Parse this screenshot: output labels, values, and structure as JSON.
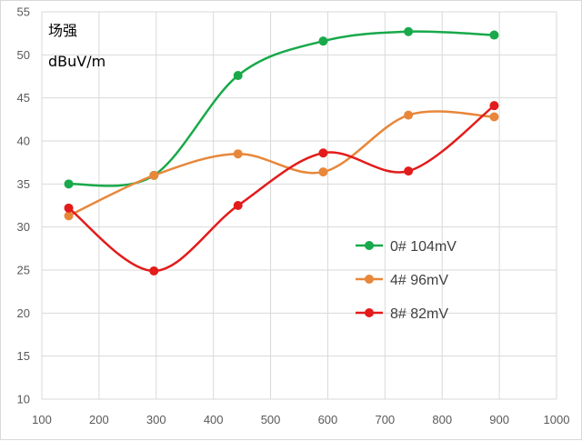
{
  "chart_data": {
    "type": "line",
    "title": "",
    "ylabel_line1": "场强",
    "ylabel_line2": "dBuV/m",
    "xlabel": "",
    "xlim": [
      100,
      1000
    ],
    "ylim": [
      10,
      55
    ],
    "x_ticks": [
      100,
      200,
      300,
      400,
      500,
      600,
      700,
      800,
      900,
      1000
    ],
    "y_ticks": [
      10,
      15,
      20,
      25,
      30,
      35,
      40,
      45,
      50,
      55
    ],
    "grid": true,
    "legend_position": "right-middle",
    "series": [
      {
        "name": "0# 104mV",
        "color": "#18a94a",
        "x": [
          147,
          296,
          443,
          592,
          741,
          891
        ],
        "y": [
          35.0,
          36.0,
          47.6,
          51.6,
          52.7,
          52.3
        ]
      },
      {
        "name": "4# 96mV",
        "color": "#e8873a",
        "x": [
          147,
          296,
          443,
          592,
          741,
          891
        ],
        "y": [
          31.3,
          36.0,
          38.5,
          36.4,
          43.0,
          42.8
        ]
      },
      {
        "name": "8# 82mV",
        "color": "#e31b1b",
        "x": [
          147,
          296,
          443,
          592,
          741,
          891
        ],
        "y": [
          32.2,
          24.9,
          32.5,
          38.6,
          36.5,
          44.1
        ]
      }
    ]
  }
}
